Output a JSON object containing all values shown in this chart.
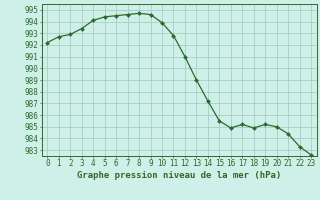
{
  "x": [
    0,
    1,
    2,
    3,
    4,
    5,
    6,
    7,
    8,
    9,
    10,
    11,
    12,
    13,
    14,
    15,
    16,
    17,
    18,
    19,
    20,
    21,
    22,
    23
  ],
  "y": [
    992.2,
    992.7,
    992.9,
    993.4,
    994.1,
    994.4,
    994.5,
    994.6,
    994.7,
    994.6,
    993.9,
    992.8,
    991.0,
    989.0,
    987.2,
    985.5,
    984.9,
    985.2,
    984.9,
    985.2,
    985.0,
    984.4,
    983.3,
    982.6
  ],
  "line_color": "#2d6a2d",
  "marker": "D",
  "marker_size": 2.0,
  "bg_color": "#cff0e8",
  "grid_color": "#99ccbb",
  "xlabel": "Graphe pression niveau de la mer (hPa)",
  "xlabel_fontsize": 6.5,
  "tick_fontsize": 5.5,
  "ylim": [
    982.5,
    995.5
  ],
  "yticks": [
    983,
    984,
    985,
    986,
    987,
    988,
    989,
    990,
    991,
    992,
    993,
    994,
    995
  ],
  "xlim": [
    -0.5,
    23.5
  ],
  "xticks": [
    0,
    1,
    2,
    3,
    4,
    5,
    6,
    7,
    8,
    9,
    10,
    11,
    12,
    13,
    14,
    15,
    16,
    17,
    18,
    19,
    20,
    21,
    22,
    23
  ]
}
